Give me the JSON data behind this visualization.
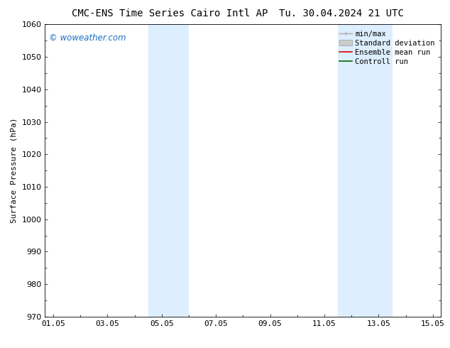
{
  "title_left": "CMC-ENS Time Series Cairo Intl AP",
  "title_right": "Tu. 30.04.2024 21 UTC",
  "ylabel": "Surface Pressure (hPa)",
  "ylim": [
    970,
    1060
  ],
  "yticks": [
    970,
    980,
    990,
    1000,
    1010,
    1020,
    1030,
    1040,
    1050,
    1060
  ],
  "xtick_labels": [
    "01.05",
    "03.05",
    "05.05",
    "07.05",
    "09.05",
    "11.05",
    "13.05",
    "15.05"
  ],
  "xtick_positions": [
    0,
    2,
    4,
    6,
    8,
    10,
    12,
    14
  ],
  "xlim": [
    -0.3,
    14.3
  ],
  "shaded_bands": [
    {
      "x_start": 3.5,
      "x_end": 5.0,
      "color": "#ddeeff"
    },
    {
      "x_start": 10.5,
      "x_end": 12.5,
      "color": "#ddeeff"
    }
  ],
  "watermark_text": "© woweather.com",
  "watermark_color": "#1a6fc4",
  "background_color": "#ffffff",
  "legend_items": [
    {
      "label": "min/max",
      "color": "#aaaaaa"
    },
    {
      "label": "Standard deviation",
      "color": "#cccccc"
    },
    {
      "label": "Ensemble mean run",
      "color": "#dd0000"
    },
    {
      "label": "Controll run",
      "color": "#006600"
    }
  ],
  "title_fontsize": 10,
  "axis_label_fontsize": 8,
  "tick_fontsize": 8,
  "legend_fontsize": 7.5,
  "watermark_fontsize": 8.5
}
